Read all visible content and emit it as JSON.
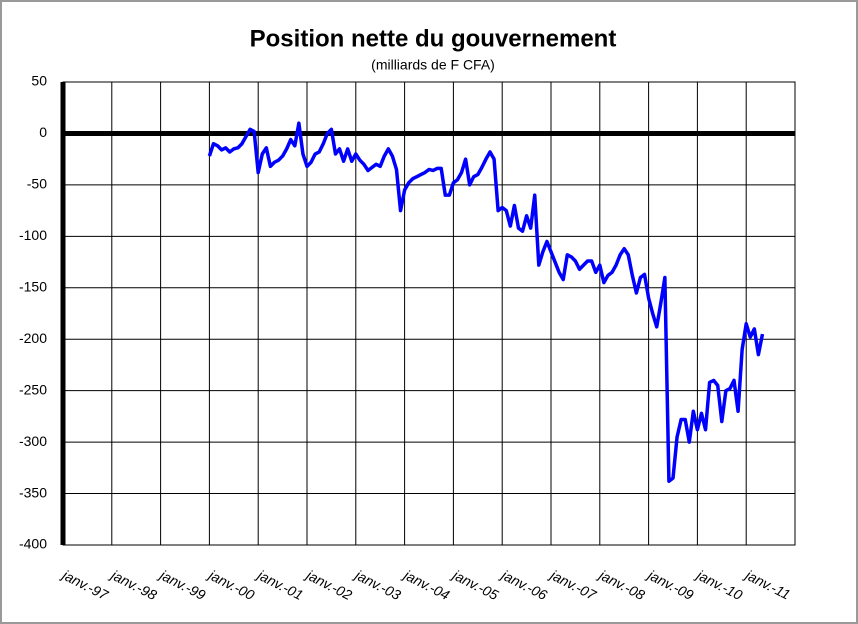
{
  "chart_data": {
    "type": "line",
    "title": "Position nette du gouvernement",
    "subtitle": "(milliards de F CFA)",
    "categories": [
      "janv.-97",
      null,
      null,
      null,
      null,
      null,
      null,
      null,
      null,
      null,
      null,
      null,
      "janv.-98",
      null,
      null,
      null,
      null,
      null,
      null,
      null,
      null,
      null,
      null,
      null,
      "janv.-99",
      null,
      null,
      null,
      null,
      null,
      null,
      null,
      null,
      null,
      null,
      null,
      "janv.-00",
      null,
      null,
      null,
      null,
      null,
      null,
      null,
      null,
      null,
      null,
      null,
      "janv.-01",
      null,
      null,
      null,
      null,
      null,
      null,
      null,
      null,
      null,
      null,
      null,
      "janv.-02",
      null,
      null,
      null,
      null,
      null,
      null,
      null,
      null,
      null,
      null,
      null,
      "janv.-03",
      null,
      null,
      null,
      null,
      null,
      null,
      null,
      null,
      null,
      null,
      null,
      "janv.-04",
      null,
      null,
      null,
      null,
      null,
      null,
      null,
      null,
      null,
      null,
      null,
      "janv.-05",
      null,
      null,
      null,
      null,
      null,
      null,
      null,
      null,
      null,
      null,
      null,
      "janv.-06",
      null,
      null,
      null,
      null,
      null,
      null,
      null,
      null,
      null,
      null,
      null,
      "janv.-07",
      null,
      null,
      null,
      null,
      null,
      null,
      null,
      null,
      null,
      null,
      null,
      "janv.-08",
      null,
      null,
      null,
      null,
      null,
      null,
      null,
      null,
      null,
      null,
      null,
      "janv.-09",
      null,
      null,
      null,
      null,
      null,
      null,
      null,
      null,
      null,
      null,
      null,
      "janv.-10",
      null,
      null,
      null,
      null,
      null,
      null,
      null,
      null,
      null,
      null,
      null,
      "janv.-11",
      null,
      null,
      null,
      null,
      null,
      null,
      null,
      null,
      null,
      null,
      null
    ],
    "series": [
      {
        "color": "#0000ff",
        "values": [
          null,
          null,
          null,
          null,
          null,
          null,
          null,
          null,
          null,
          null,
          null,
          null,
          null,
          null,
          null,
          null,
          null,
          null,
          null,
          null,
          null,
          null,
          null,
          null,
          null,
          null,
          null,
          null,
          null,
          null,
          null,
          null,
          null,
          null,
          null,
          null,
          -22,
          -10,
          -12,
          -16,
          -14,
          -18,
          -15,
          -14,
          -10,
          -3,
          4,
          2,
          -38,
          -20,
          -14,
          -32,
          -28,
          -26,
          -22,
          -15,
          -6,
          -12,
          10,
          -20,
          -32,
          -28,
          -20,
          -18,
          -10,
          0,
          4,
          -20,
          -15,
          -27,
          -15,
          -27,
          -20,
          -26,
          -30,
          -36,
          -33,
          -30,
          -32,
          -22,
          -15,
          -22,
          -35,
          -75,
          -55,
          -48,
          -44,
          -42,
          -40,
          -38,
          -35,
          -36,
          -34,
          -34,
          -60,
          -60,
          -48,
          -45,
          -38,
          -25,
          -50,
          -42,
          -40,
          -33,
          -25,
          -18,
          -25,
          -75,
          -72,
          -75,
          -90,
          -70,
          -92,
          -95,
          -80,
          -92,
          -60,
          -128,
          -115,
          -105,
          -115,
          -125,
          -135,
          -142,
          -118,
          -120,
          -124,
          -132,
          -128,
          -124,
          -124,
          -135,
          -128,
          -145,
          -138,
          -135,
          -128,
          -118,
          -112,
          -118,
          -138,
          -155,
          -140,
          -137,
          -160,
          -175,
          -188,
          -165,
          -140,
          -338,
          -335,
          -295,
          -278,
          -278,
          -300,
          -270,
          -288,
          -272,
          -288,
          -242,
          -240,
          -245,
          -280,
          -250,
          -248,
          -240,
          -270,
          -210,
          -185,
          -198,
          -190,
          -215,
          -195,
          null,
          null,
          null,
          null,
          null,
          null,
          null
        ]
      }
    ],
    "ylim": [
      -400,
      50
    ],
    "yticks": [
      50,
      0,
      -50,
      -100,
      -150,
      -200,
      -250,
      -300,
      -350,
      -400
    ],
    "grid": true
  }
}
